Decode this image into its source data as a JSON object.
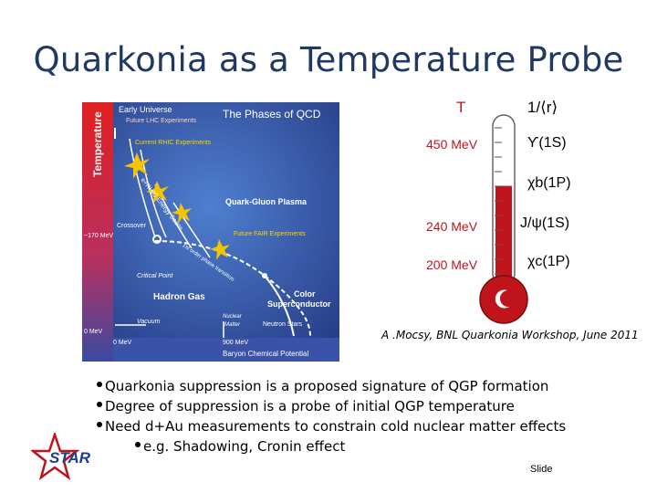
{
  "title": "Quarkonia as a Temperature Probe",
  "qcd_figure": {
    "temperature_axis": "Temperature",
    "early_universe": "Early Universe",
    "heading": "The Phases of QCD",
    "future_lhc": "Future LHC Experiments",
    "current_rhic": "Current RHIC Experiments",
    "energy_scans": "e+RHIC Energy Scans",
    "qgp": "Quark-Gluon Plasma",
    "crossover": "Crossover",
    "future_fair": "Future FAIR Experiments",
    "first_order": "1st order phase transition",
    "critical_point": "Critical Point",
    "t170": "~170 MeV",
    "hadron_gas": "Hadron Gas",
    "color_sc_1": "Color",
    "color_sc_2": "Superconductor",
    "nuclear_1": "Nuclear",
    "nuclear_2": "Matter",
    "vacuum": "Vacuum",
    "t0": "0 MeV",
    "neutron_stars": "Neutron Stars",
    "mu0": "0 MeV",
    "mu900": "900 MeV",
    "mu_axis": "Baryon Chemical Potential"
  },
  "thermometer": {
    "t_label": "T",
    "r_label": "1/⟨r⟩",
    "levels": [
      {
        "energy": "450 MeV",
        "state": "ϒ(1S)"
      },
      {
        "energy": "",
        "state": "χb(1P)"
      },
      {
        "energy": "240 MeV",
        "state": "J/ψ(1S)"
      },
      {
        "energy": "200 MeV",
        "state": "χc(1P)"
      }
    ],
    "fill_fraction": 0.6
  },
  "citation": "A .Mocsy, BNL Quarkonia Workshop, June 2011",
  "bullets": [
    "Quarkonia suppression is a proposed signature of QGP formation",
    "Degree of suppression is a probe of initial QGP temperature",
    "Need d+Au measurements to constrain cold nuclear matter effects"
  ],
  "sub_bullet": "e.g. Shadowing, Cronin effect",
  "footer": "Slide",
  "logo_text": "STAR",
  "colors": {
    "title": "#1f3864",
    "mercury": "#c0141c"
  }
}
